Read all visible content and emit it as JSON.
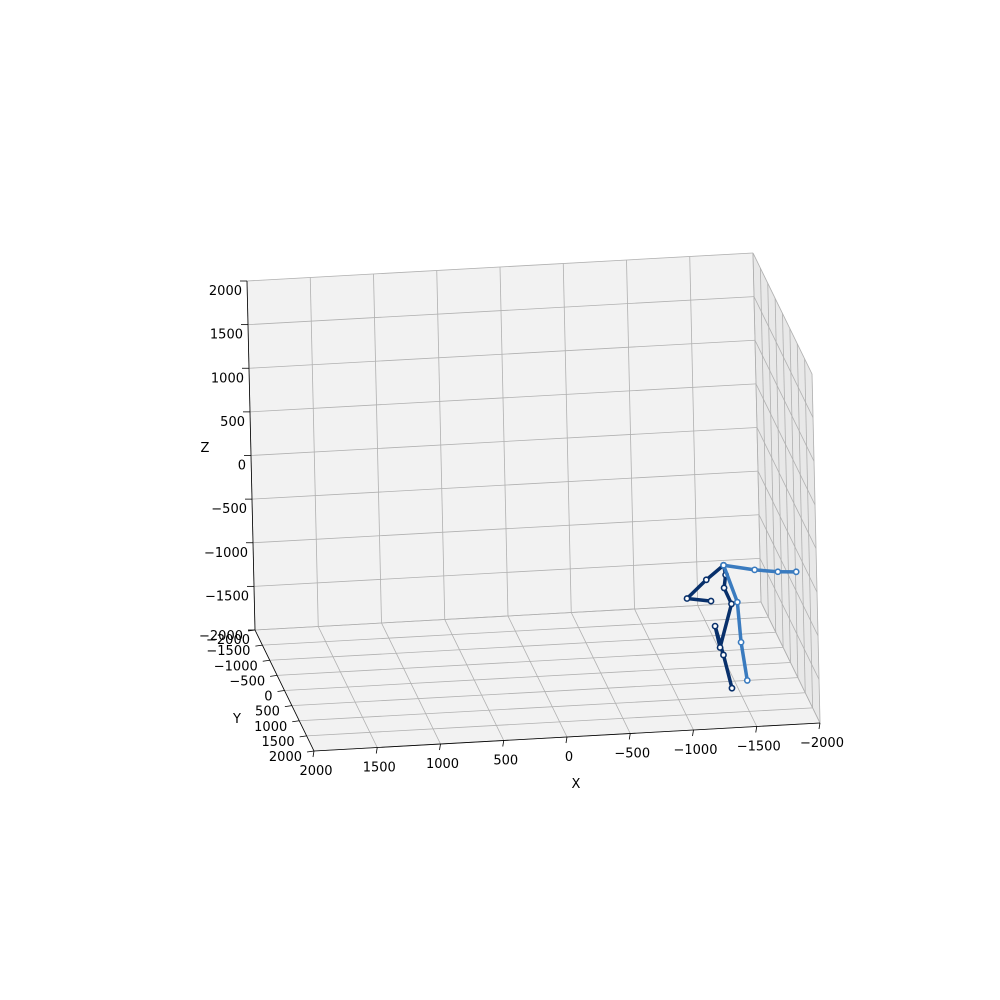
{
  "chart_data": {
    "type": "scatter3d",
    "title": "",
    "axes": {
      "x": {
        "label": "X",
        "lim": [
          -2000,
          2000
        ],
        "ticks": [
          2000,
          1500,
          1000,
          500,
          0,
          -500,
          -1000,
          -1500,
          -2000
        ],
        "tick_labels": [
          "2000",
          "1500",
          "1000",
          "500",
          "0",
          "−500",
          "−1000",
          "−1500",
          "−2000"
        ]
      },
      "y": {
        "label": "Y",
        "lim": [
          -2000,
          2000
        ],
        "ticks": [
          -2000,
          -1500,
          -1000,
          -500,
          0,
          500,
          1000,
          1500,
          2000
        ],
        "tick_labels": [
          "−2000",
          "−1500",
          "−1000",
          "−500",
          "0",
          "500",
          "1000",
          "1500",
          "2000"
        ]
      },
      "z": {
        "label": "Z",
        "lim": [
          -2000,
          2000
        ],
        "ticks": [
          2000,
          1500,
          1000,
          500,
          0,
          -500,
          -1000,
          -1500,
          -2000
        ],
        "tick_labels": [
          "2000",
          "1500",
          "1000",
          "500",
          "0",
          "−500",
          "−1000",
          "−1500",
          "−2000"
        ]
      }
    },
    "grid": true,
    "series": [
      {
        "color": "#08306b",
        "points": [
          [
            -1700,
            -1900,
            -1520
          ],
          [
            -1550,
            -1800,
            -1640
          ],
          [
            -1350,
            -1400,
            -1700
          ],
          [
            -1550,
            -1500,
            -1780
          ],
          [
            -1500,
            -800,
            -1820
          ],
          [
            -1450,
            200,
            -1800
          ],
          [
            -1400,
            1200,
            -1830
          ],
          [
            -1720,
            -1950,
            -1650
          ],
          [
            -1700,
            -1900,
            -1780
          ],
          [
            -1750,
            -1850,
            -1950
          ],
          [
            -1480,
            -300,
            -1890
          ]
        ],
        "edges": [
          [
            0,
            1
          ],
          [
            1,
            2
          ],
          [
            2,
            3
          ],
          [
            0,
            7
          ],
          [
            7,
            8
          ],
          [
            8,
            9
          ],
          [
            9,
            10
          ],
          [
            10,
            4
          ],
          [
            4,
            5
          ],
          [
            5,
            6
          ]
        ]
      },
      {
        "color": "#3a7bbf",
        "points": [
          [
            -1700,
            -1900,
            -1520
          ],
          [
            -1900,
            -1500,
            -1450
          ],
          [
            -2050,
            -1200,
            -1380
          ],
          [
            -2150,
            -800,
            -1250
          ],
          [
            -1780,
            -1700,
            -1880
          ],
          [
            -1680,
            -600,
            -1950
          ],
          [
            -1600,
            500,
            -2000
          ]
        ],
        "edges": [
          [
            0,
            1
          ],
          [
            1,
            2
          ],
          [
            2,
            3
          ],
          [
            0,
            4
          ],
          [
            4,
            5
          ],
          [
            5,
            6
          ]
        ]
      }
    ]
  }
}
